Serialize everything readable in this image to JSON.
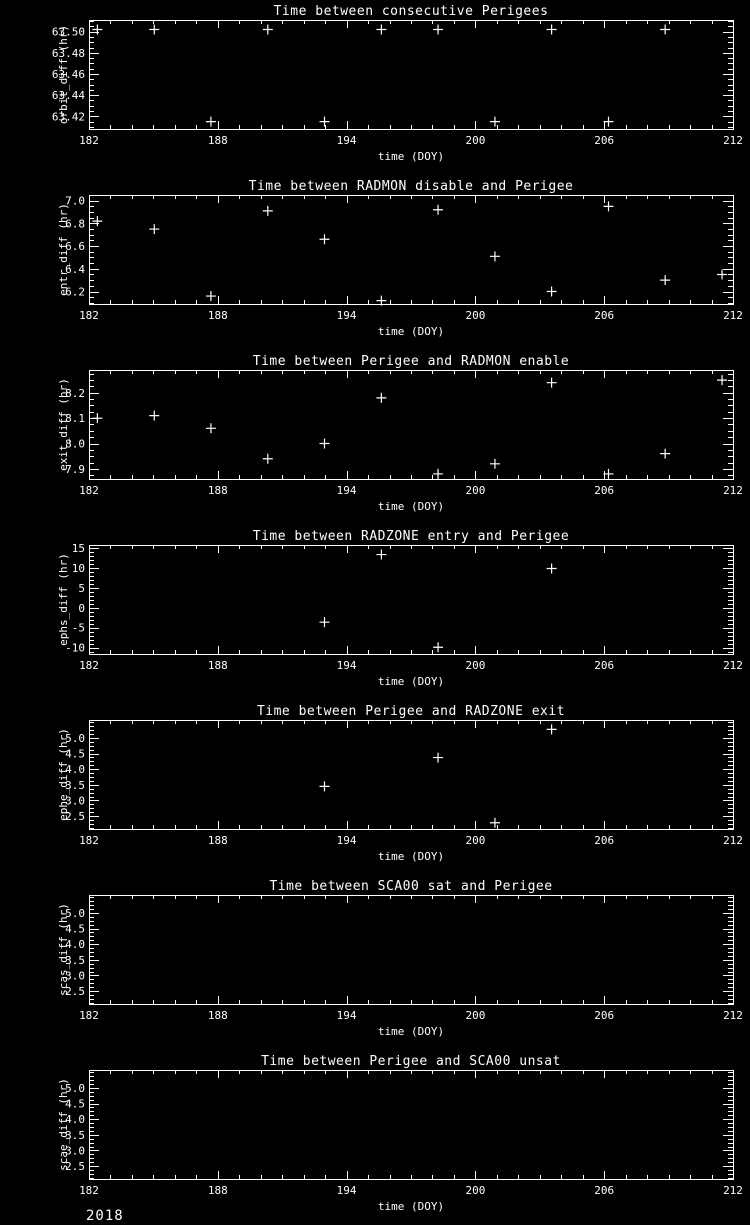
{
  "page": {
    "background": "#000000",
    "foreground": "#ffffff",
    "footer_year": "2018"
  },
  "chart_data": [
    {
      "type": "scatter",
      "title": "Time between consecutive Perigees",
      "xlabel": "time (DOY)",
      "ylabel": "orbit_diff (hr)",
      "xlim": [
        182,
        212
      ],
      "xticks": [
        182,
        188,
        194,
        200,
        206,
        212
      ],
      "xtick_labels": [
        "182",
        "188",
        "194",
        "200",
        "206",
        "212"
      ],
      "x_minor_step": 1,
      "ylim": [
        63.408,
        63.511
      ],
      "yticks": [
        63.42,
        63.44,
        63.46,
        63.48,
        63.5
      ],
      "ytick_labels": [
        "63.42",
        "63.44",
        "63.46",
        "63.48",
        "63.50"
      ],
      "y_minor_step": 0.005,
      "grid": false,
      "marker": "plus",
      "marker_color": "#ffffff",
      "x": [
        182.39,
        185.04,
        187.68,
        190.33,
        192.97,
        195.62,
        198.26,
        200.91,
        203.55,
        206.2,
        208.84
      ],
      "y": [
        63.502,
        63.502,
        63.415,
        63.502,
        63.415,
        63.502,
        63.502,
        63.415,
        63.502,
        63.415,
        63.502
      ]
    },
    {
      "type": "scatter",
      "title": "Time between RADMON disable and Perigee",
      "xlabel": "time (DOY)",
      "ylabel": "entr_diff (hr)",
      "xlim": [
        182,
        212
      ],
      "xticks": [
        182,
        188,
        194,
        200,
        206,
        212
      ],
      "xtick_labels": [
        "182",
        "188",
        "194",
        "200",
        "206",
        "212"
      ],
      "x_minor_step": 1,
      "ylim": [
        6.09,
        7.05
      ],
      "yticks": [
        6.2,
        6.4,
        6.6,
        6.8,
        7.0
      ],
      "ytick_labels": [
        "6.2",
        "6.4",
        "6.6",
        "6.8",
        "7.0"
      ],
      "y_minor_step": 0.05,
      "grid": false,
      "marker": "plus",
      "marker_color": "#ffffff",
      "x": [
        182.39,
        185.04,
        187.68,
        190.33,
        192.97,
        195.62,
        198.26,
        200.91,
        203.55,
        206.2,
        208.84,
        211.49
      ],
      "y": [
        6.82,
        6.75,
        6.16,
        6.91,
        6.66,
        6.12,
        6.92,
        6.51,
        6.2,
        6.95,
        6.3,
        6.35
      ]
    },
    {
      "type": "scatter",
      "title": "Time between Perigee and RADMON enable",
      "xlabel": "time (DOY)",
      "ylabel": "exit_diff (hr)",
      "xlim": [
        182,
        212
      ],
      "xticks": [
        182,
        188,
        194,
        200,
        206,
        212
      ],
      "xtick_labels": [
        "182",
        "188",
        "194",
        "200",
        "206",
        "212"
      ],
      "x_minor_step": 1,
      "ylim": [
        7.86,
        8.29
      ],
      "yticks": [
        7.9,
        8.0,
        8.1,
        8.2
      ],
      "ytick_labels": [
        "7.9",
        "8.0",
        "8.1",
        "8.2"
      ],
      "y_minor_step": 0.025,
      "grid": false,
      "marker": "plus",
      "marker_color": "#ffffff",
      "x": [
        182.39,
        185.04,
        187.68,
        190.33,
        192.97,
        195.62,
        198.26,
        200.91,
        203.55,
        206.2,
        208.84,
        211.49
      ],
      "y": [
        8.1,
        8.11,
        8.06,
        7.94,
        8.0,
        8.18,
        7.88,
        7.92,
        8.24,
        7.88,
        7.96,
        8.25
      ]
    },
    {
      "type": "scatter",
      "title": "Time between RADZONE entry and Perigee",
      "xlabel": "time (DOY)",
      "ylabel": "ephs_diff (hr)",
      "xlim": [
        182,
        212
      ],
      "xticks": [
        182,
        188,
        194,
        200,
        206,
        212
      ],
      "xtick_labels": [
        "182",
        "188",
        "194",
        "200",
        "206",
        "212"
      ],
      "x_minor_step": 1,
      "ylim": [
        -11.6,
        15.8
      ],
      "yticks": [
        -10,
        -5,
        0,
        5,
        10,
        15
      ],
      "ytick_labels": [
        "-10",
        "-5",
        "0",
        "5",
        "10",
        "15"
      ],
      "y_minor_step": 1,
      "grid": false,
      "marker": "plus",
      "marker_color": "#ffffff",
      "x": [
        192.97,
        195.62,
        198.26,
        203.55
      ],
      "y": [
        -3.6,
        13.4,
        -9.9,
        9.9
      ]
    },
    {
      "type": "scatter",
      "title": "Time between Perigee and RADZONE exit",
      "xlabel": "time (DOY)",
      "ylabel": "ephe_diff (hr)",
      "xlim": [
        182,
        212
      ],
      "xticks": [
        182,
        188,
        194,
        200,
        206,
        212
      ],
      "xtick_labels": [
        "182",
        "188",
        "194",
        "200",
        "206",
        "212"
      ],
      "x_minor_step": 1,
      "ylim": [
        2.09,
        5.57
      ],
      "yticks": [
        2.5,
        3.0,
        3.5,
        4.0,
        4.5,
        5.0
      ],
      "ytick_labels": [
        "2.5",
        "3.0",
        "3.5",
        "4.0",
        "4.5",
        "5.0"
      ],
      "y_minor_step": 0.125,
      "grid": false,
      "marker": "plus",
      "marker_color": "#ffffff",
      "x": [
        192.97,
        198.26,
        200.91,
        203.55
      ],
      "y": [
        3.45,
        4.37,
        2.29,
        5.27
      ]
    },
    {
      "type": "scatter",
      "title": "Time between SCA00 sat and Perigee",
      "xlabel": "time (DOY)",
      "ylabel": "scas_diff (hr)",
      "xlim": [
        182,
        212
      ],
      "xticks": [
        182,
        188,
        194,
        200,
        206,
        212
      ],
      "xtick_labels": [
        "182",
        "188",
        "194",
        "200",
        "206",
        "212"
      ],
      "x_minor_step": 1,
      "ylim": [
        2.09,
        5.57
      ],
      "yticks": [
        2.5,
        3.0,
        3.5,
        4.0,
        4.5,
        5.0
      ],
      "ytick_labels": [
        "2.5",
        "3.0",
        "3.5",
        "4.0",
        "4.5",
        "5.0"
      ],
      "y_minor_step": 0.125,
      "grid": false,
      "marker": "plus",
      "marker_color": "#ffffff",
      "x": [],
      "y": []
    },
    {
      "type": "scatter",
      "title": "Time between Perigee and SCA00 unsat",
      "xlabel": "time (DOY)",
      "ylabel": "scae_diff (hr)",
      "xlim": [
        182,
        212
      ],
      "xticks": [
        182,
        188,
        194,
        200,
        206,
        212
      ],
      "xtick_labels": [
        "182",
        "188",
        "194",
        "200",
        "206",
        "212"
      ],
      "x_minor_step": 1,
      "ylim": [
        2.09,
        5.57
      ],
      "yticks": [
        2.5,
        3.0,
        3.5,
        4.0,
        4.5,
        5.0
      ],
      "ytick_labels": [
        "2.5",
        "3.0",
        "3.5",
        "4.0",
        "4.5",
        "5.0"
      ],
      "y_minor_step": 0.125,
      "grid": false,
      "marker": "plus",
      "marker_color": "#ffffff",
      "x": [],
      "y": []
    }
  ]
}
